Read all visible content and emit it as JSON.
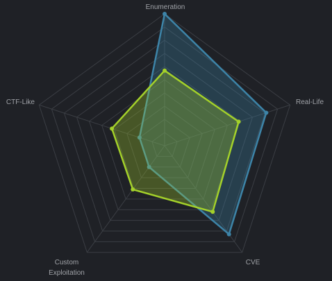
{
  "chart_data": {
    "type": "radar",
    "categories": [
      "Enumeration",
      "Real-Life",
      "CVE",
      "Custom Exploitation",
      "CTF-Like"
    ],
    "series": [
      {
        "color": "#3d84a8",
        "values": [
          100,
          81,
          83,
          20,
          20
        ]
      },
      {
        "color": "#a4d12a",
        "values": [
          57,
          59,
          62,
          41,
          42
        ]
      }
    ],
    "rlim": [
      0,
      100
    ],
    "rticks": [
      10,
      20,
      30,
      40,
      50,
      60,
      70,
      80,
      90,
      100
    ],
    "grid": true
  }
}
